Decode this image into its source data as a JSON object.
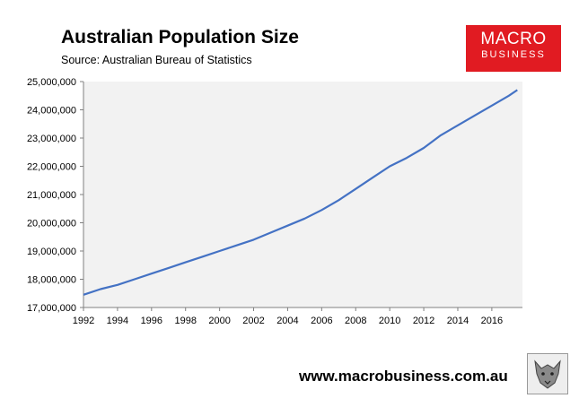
{
  "header": {
    "title": "Australian Population Size",
    "subtitle": "Source: Australian Bureau of Statistics"
  },
  "logo": {
    "line1": "MACRO",
    "line2": "BUSINESS",
    "color": "#e11b22"
  },
  "footer": {
    "url": "www.macrobusiness.com.au"
  },
  "mascot": {
    "icon": "wolf-mascot-icon"
  },
  "chart_data": {
    "type": "line",
    "title": "Australian Population Size",
    "subtitle": "Source: Australian Bureau of Statistics",
    "xlabel": "",
    "ylabel": "",
    "xlim": [
      1992,
      2017.8
    ],
    "ylim": [
      17000000,
      25000000
    ],
    "grid": false,
    "plot_background": "#f2f2f2",
    "line_color": "#4472c4",
    "x_ticks": [
      "1992",
      "1994",
      "1996",
      "1998",
      "2000",
      "2002",
      "2004",
      "2006",
      "2008",
      "2010",
      "2012",
      "2014",
      "2016"
    ],
    "y_ticks": [
      "17,000,000",
      "18,000,000",
      "19,000,000",
      "20,000,000",
      "21,000,000",
      "22,000,000",
      "23,000,000",
      "24,000,000",
      "25,000,000"
    ],
    "series": [
      {
        "x": [
          1992.0,
          1993.0,
          1994.0,
          1995.0,
          1996.0,
          1997.0,
          1998.0,
          1999.0,
          2000.0,
          2001.0,
          2002.0,
          2003.0,
          2004.0,
          2005.0,
          2006.0,
          2007.0,
          2008.0,
          2009.0,
          2010.0,
          2011.0,
          2012.0,
          2013.0,
          2014.0,
          2015.0,
          2016.0,
          2017.0,
          2017.5
        ],
        "values": [
          17450000,
          17650000,
          17800000,
          18000000,
          18200000,
          18400000,
          18600000,
          18800000,
          19000000,
          19200000,
          19400000,
          19650000,
          19900000,
          20150000,
          20450000,
          20800000,
          21200000,
          21600000,
          22000000,
          22300000,
          22650000,
          23100000,
          23450000,
          23800000,
          24150000,
          24500000,
          24700000
        ]
      }
    ]
  }
}
